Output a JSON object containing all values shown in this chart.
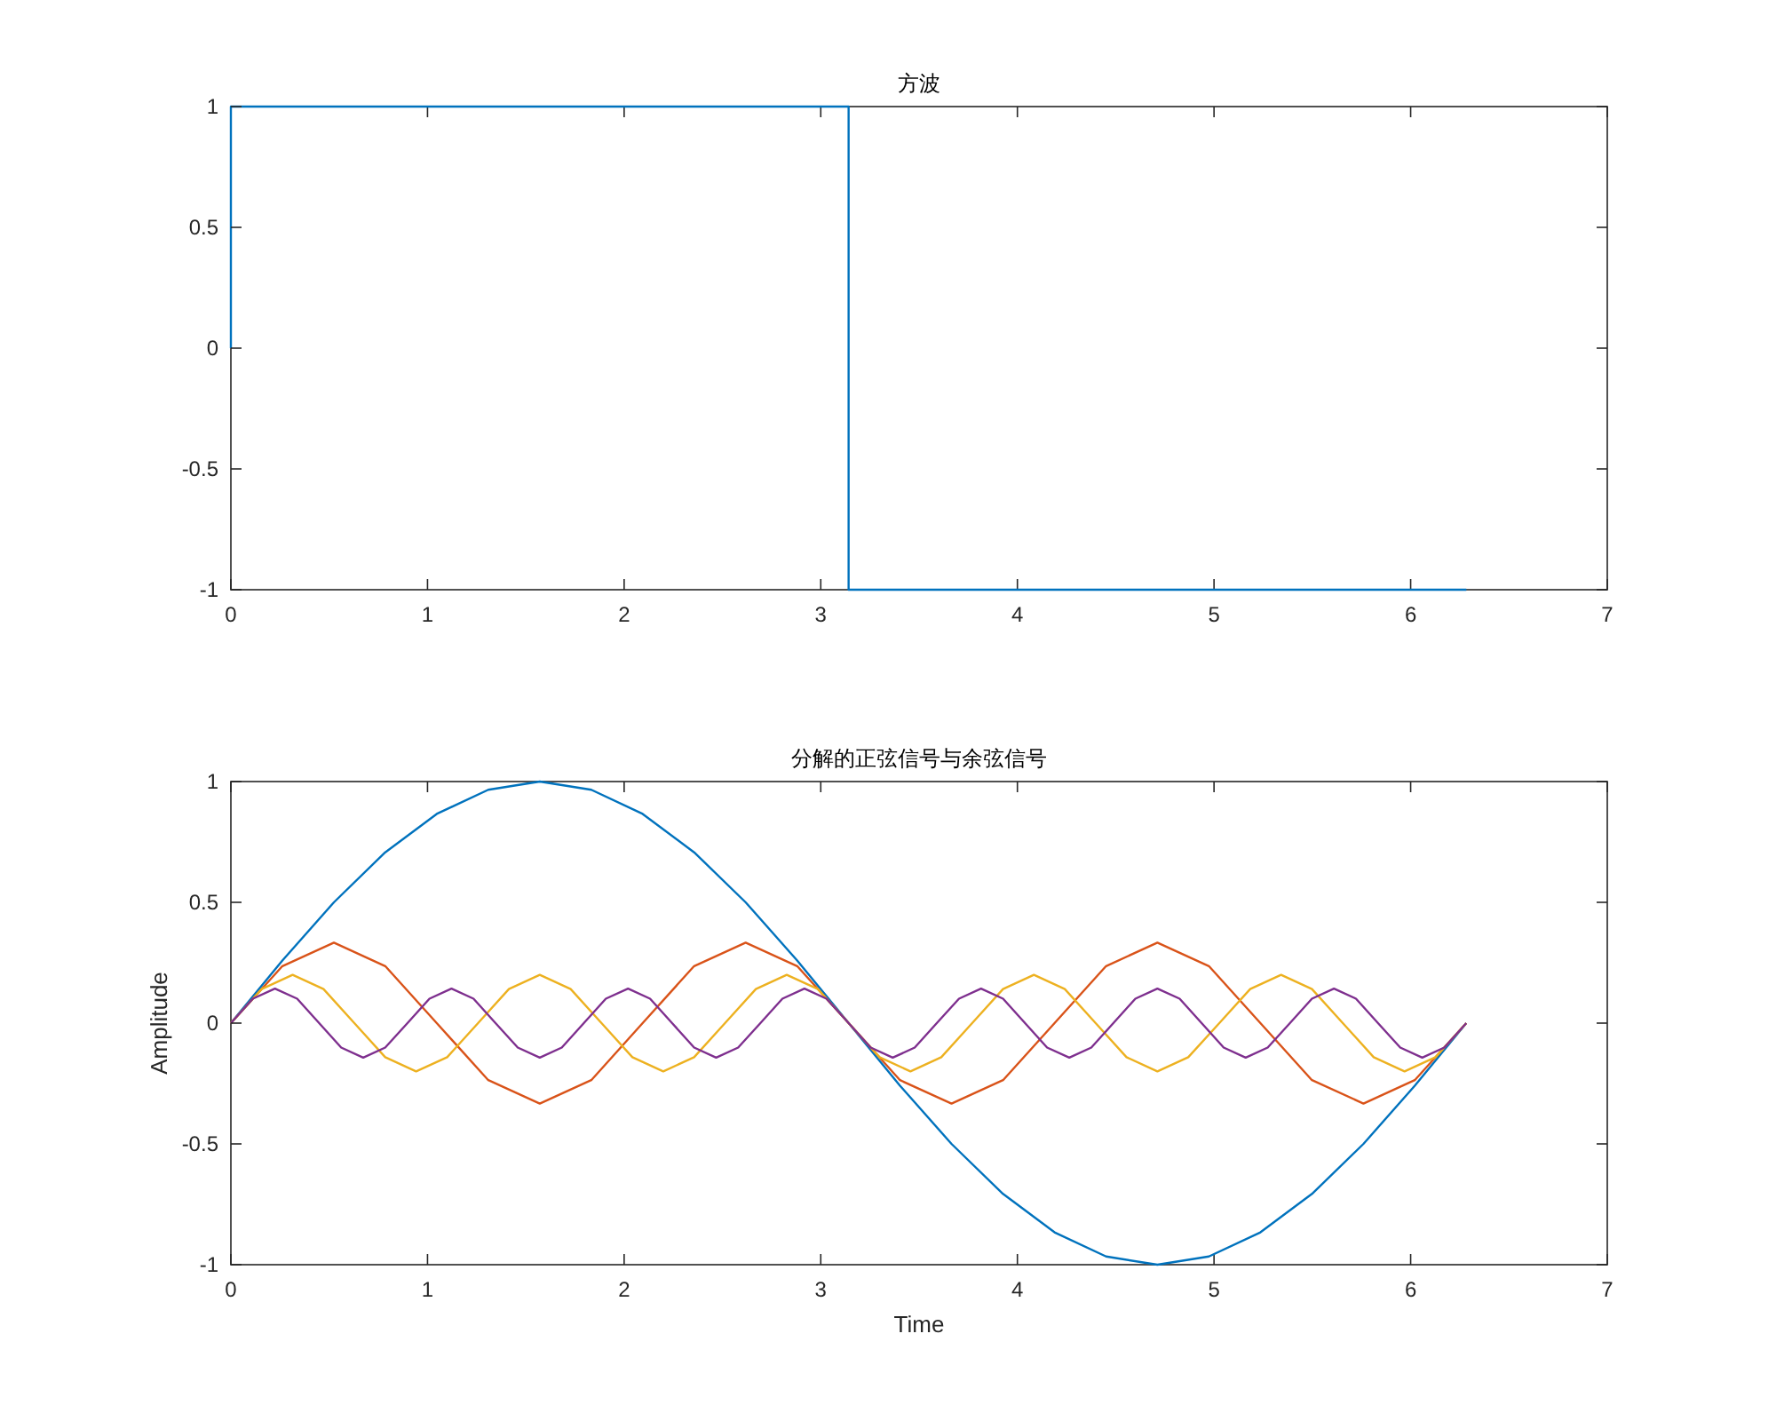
{
  "chart_data": [
    {
      "type": "line",
      "title": "方波",
      "xlim": [
        0,
        7
      ],
      "xticks": [
        0,
        1,
        2,
        3,
        4,
        5,
        6,
        7
      ],
      "ylim": [
        -1,
        1
      ],
      "yticks": [
        -1,
        -0.5,
        0,
        0.5,
        1
      ],
      "series": [
        {
          "color": "#0072bd",
          "x": [
            0,
            0,
            3.1416,
            3.1416,
            6.2832
          ],
          "values": [
            0,
            1,
            1,
            -1,
            -1
          ]
        }
      ]
    },
    {
      "type": "line",
      "title": "分解的正弦信号与余弦信号",
      "xlabel": "Time",
      "ylabel": "Amplitude",
      "xlim": [
        0,
        7
      ],
      "xticks": [
        0,
        1,
        2,
        3,
        4,
        5,
        6,
        7
      ],
      "ylim": [
        -1,
        1
      ],
      "yticks": [
        -1,
        -0.5,
        0,
        0.5,
        1
      ],
      "series": [
        {
          "color": "#0072bd",
          "x": [
            0,
            0.262,
            0.524,
            0.785,
            1.047,
            1.309,
            1.571,
            1.833,
            2.094,
            2.356,
            2.618,
            2.88,
            3.142,
            3.403,
            3.665,
            3.927,
            4.189,
            4.451,
            4.712,
            4.974,
            5.236,
            5.498,
            5.76,
            6.021,
            6.283
          ],
          "values": [
            0,
            0.259,
            0.5,
            0.707,
            0.866,
            0.966,
            1,
            0.966,
            0.866,
            0.707,
            0.5,
            0.259,
            0,
            -0.259,
            -0.5,
            -0.707,
            -0.866,
            -0.966,
            -1,
            -0.966,
            -0.866,
            -0.707,
            -0.5,
            -0.259,
            0
          ]
        },
        {
          "color": "#d95319",
          "x": [
            0,
            0.262,
            0.524,
            0.785,
            1.047,
            1.309,
            1.571,
            1.833,
            2.094,
            2.356,
            2.618,
            2.88,
            3.142,
            3.403,
            3.665,
            3.927,
            4.189,
            4.451,
            4.712,
            4.974,
            5.236,
            5.498,
            5.76,
            6.021,
            6.283
          ],
          "values": [
            0,
            0.236,
            0.333,
            0.236,
            0,
            -0.236,
            -0.333,
            -0.236,
            0,
            0.236,
            0.333,
            0.236,
            0,
            -0.236,
            -0.333,
            -0.236,
            0,
            0.236,
            0.333,
            0.236,
            0,
            -0.236,
            -0.333,
            -0.236,
            0
          ]
        },
        {
          "color": "#edb120",
          "x": [
            0,
            0.157,
            0.314,
            0.471,
            0.628,
            0.785,
            0.942,
            1.1,
            1.257,
            1.414,
            1.571,
            1.728,
            1.885,
            2.042,
            2.199,
            2.356,
            2.513,
            2.67,
            2.827,
            2.985,
            3.142,
            3.299,
            3.456,
            3.613,
            3.77,
            3.927,
            4.084,
            4.241,
            4.398,
            4.555,
            4.712,
            4.869,
            5.027,
            5.184,
            5.341,
            5.498,
            5.655,
            5.812,
            5.969,
            6.126,
            6.283
          ],
          "values": [
            0,
            0.141,
            0.2,
            0.141,
            0,
            -0.141,
            -0.2,
            -0.141,
            0,
            0.141,
            0.2,
            0.141,
            0,
            -0.141,
            -0.2,
            -0.141,
            0,
            0.141,
            0.2,
            0.141,
            0,
            -0.141,
            -0.2,
            -0.141,
            0,
            0.141,
            0.2,
            0.141,
            0,
            -0.141,
            -0.2,
            -0.141,
            0,
            0.141,
            0.2,
            0.141,
            0,
            -0.141,
            -0.2,
            -0.141,
            0
          ]
        },
        {
          "color": "#7e2f8e",
          "x": [
            0,
            0.112,
            0.224,
            0.337,
            0.449,
            0.561,
            0.673,
            0.785,
            0.898,
            1.01,
            1.122,
            1.234,
            1.346,
            1.459,
            1.571,
            1.683,
            1.795,
            1.907,
            2.02,
            2.132,
            2.244,
            2.356,
            2.468,
            2.58,
            2.693,
            2.805,
            2.917,
            3.029,
            3.142,
            3.254,
            3.366,
            3.478,
            3.59,
            3.703,
            3.815,
            3.927,
            4.039,
            4.151,
            4.264,
            4.376,
            4.488,
            4.6,
            4.712,
            4.825,
            4.937,
            5.049,
            5.161,
            5.273,
            5.386,
            5.498,
            5.61,
            5.722,
            5.834,
            5.947,
            6.059,
            6.171,
            6.283
          ],
          "values": [
            0,
            0.101,
            0.143,
            0.101,
            0,
            -0.101,
            -0.143,
            -0.101,
            0,
            0.101,
            0.143,
            0.101,
            0,
            -0.101,
            -0.143,
            -0.101,
            0,
            0.101,
            0.143,
            0.101,
            0,
            -0.101,
            -0.143,
            -0.101,
            0,
            0.101,
            0.143,
            0.101,
            0,
            -0.101,
            -0.143,
            -0.101,
            0,
            0.101,
            0.143,
            0.101,
            0,
            -0.101,
            -0.143,
            -0.101,
            0,
            0.101,
            0.143,
            0.101,
            0,
            -0.101,
            -0.143,
            -0.101,
            0,
            0.101,
            0.143,
            0.101,
            0,
            -0.101,
            -0.143,
            -0.101,
            0
          ]
        }
      ]
    }
  ]
}
